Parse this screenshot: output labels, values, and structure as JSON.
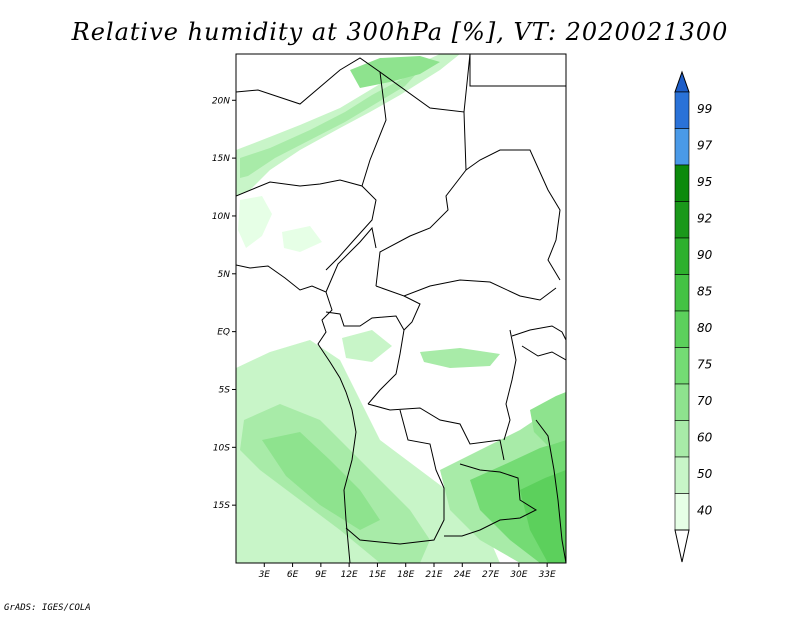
{
  "title": "Relative humidity at 300hPa [%], VT: 2020021300",
  "credit": "GrADS: IGES/COLA",
  "map": {
    "lon_range": [
      0,
      35
    ],
    "lat_range": [
      -20,
      24
    ],
    "lat_ticks": [
      {
        "value": 20,
        "label": "20N"
      },
      {
        "value": 15,
        "label": "15N"
      },
      {
        "value": 10,
        "label": "10N"
      },
      {
        "value": 5,
        "label": "5N"
      },
      {
        "value": 0,
        "label": "EQ"
      },
      {
        "value": -5,
        "label": "5S"
      },
      {
        "value": -10,
        "label": "10S"
      },
      {
        "value": -15,
        "label": "15S"
      }
    ],
    "lon_ticks": [
      {
        "value": 3,
        "label": "3E"
      },
      {
        "value": 6,
        "label": "6E"
      },
      {
        "value": 9,
        "label": "9E"
      },
      {
        "value": 12,
        "label": "12E"
      },
      {
        "value": 15,
        "label": "15E"
      },
      {
        "value": 18,
        "label": "18E"
      },
      {
        "value": 21,
        "label": "21E"
      },
      {
        "value": 24,
        "label": "24E"
      },
      {
        "value": 27,
        "label": "27E"
      },
      {
        "value": 30,
        "label": "30E"
      },
      {
        "value": 33,
        "label": "33E"
      }
    ]
  },
  "colorbar": {
    "levels": [
      {
        "label": "40",
        "color": "#e6ffe6"
      },
      {
        "label": "50",
        "color": "#c8f5c8"
      },
      {
        "label": "60",
        "color": "#a8eba8"
      },
      {
        "label": "70",
        "color": "#8ee38e"
      },
      {
        "label": "75",
        "color": "#74db74"
      },
      {
        "label": "80",
        "color": "#5cd05c"
      },
      {
        "label": "85",
        "color": "#44c244"
      },
      {
        "label": "90",
        "color": "#2eb02e"
      },
      {
        "label": "92",
        "color": "#1a981a"
      },
      {
        "label": "95",
        "color": "#0c8a0c"
      },
      {
        "label": "97",
        "color": "#4a9ae8"
      },
      {
        "label": "99",
        "color": "#2a72d8"
      }
    ],
    "top_arrow_color": "#1e5ec8",
    "bottom_arrow_color": "#ffffff"
  }
}
